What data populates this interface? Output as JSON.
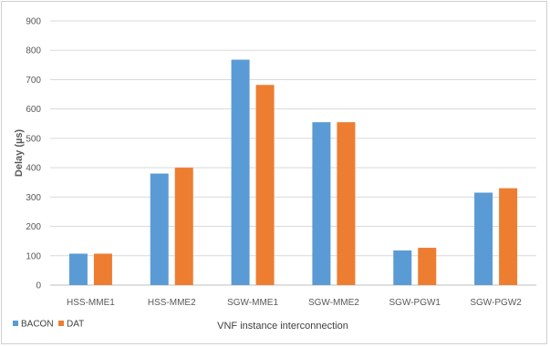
{
  "chart_data": {
    "type": "bar",
    "title": "",
    "xlabel": "VNF instance interconnection",
    "ylabel": "Delay (µs)",
    "ylim": [
      0,
      900
    ],
    "yticks": [
      0,
      100,
      200,
      300,
      400,
      500,
      600,
      700,
      800,
      900
    ],
    "grid": true,
    "legend_position": "bottom-left",
    "categories": [
      "HSS-MME1",
      "HSS-MME2",
      "SGW-MME1",
      "SGW-MME2",
      "SGW-PGW1",
      "SGW-PGW2"
    ],
    "series": [
      {
        "name": "BACON",
        "color": "#5b9bd5",
        "values": [
          107,
          380,
          768,
          555,
          118,
          315
        ]
      },
      {
        "name": "DAT",
        "color": "#ed7d31",
        "values": [
          107,
          400,
          682,
          555,
          127,
          330
        ]
      }
    ]
  }
}
